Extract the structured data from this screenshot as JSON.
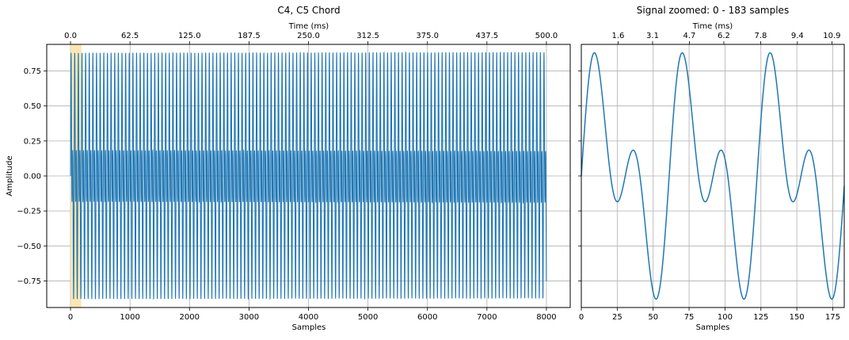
{
  "chart_data": [
    {
      "type": "line",
      "title": "C4, C5 Chord",
      "xlabel": "Samples",
      "ylabel": "Amplitude",
      "top_xlabel": "Time (ms)",
      "xlim": [
        -400,
        8400
      ],
      "ylim": [
        -0.94,
        0.94
      ],
      "xticks": [
        0,
        1000,
        2000,
        3000,
        4000,
        5000,
        6000,
        7000,
        8000
      ],
      "xtick_labels": [
        "0",
        "1000",
        "2000",
        "3000",
        "4000",
        "5000",
        "6000",
        "7000",
        "8000"
      ],
      "yticks": [
        -0.75,
        -0.5,
        -0.25,
        0.0,
        0.25,
        0.5,
        0.75
      ],
      "ytick_labels": [
        "−0.75",
        "−0.50",
        "−0.25",
        "0.00",
        "0.25",
        "0.50",
        "0.75"
      ],
      "top_xticks_samples": [
        0,
        1000,
        2000,
        3000,
        4000,
        5000,
        6000,
        7000,
        8000
      ],
      "top_xtick_labels": [
        "0.0",
        "62.5",
        "125.0",
        "187.5",
        "250.0",
        "312.5",
        "375.0",
        "437.5",
        "500.0"
      ],
      "grid": true,
      "highlight_span": {
        "x0": 0,
        "x1": 183,
        "color": "#fde3ab"
      },
      "signal": {
        "description_samples": 8000,
        "sample_rate_hz": 16000,
        "components": [
          {
            "freq_hz": 261.63,
            "amplitude": 0.5
          },
          {
            "freq_hz": 523.25,
            "amplitude": 0.5
          }
        ]
      },
      "series": [
        {
          "color": "#1f77b4"
        }
      ]
    },
    {
      "type": "line",
      "title": "Signal zoomed: 0 - 183 samples",
      "xlabel": "Samples",
      "top_xlabel": "Time (ms)",
      "xlim": [
        0,
        183
      ],
      "ylim": [
        -0.94,
        0.94
      ],
      "xticks": [
        0,
        25,
        50,
        75,
        100,
        125,
        150,
        175
      ],
      "xtick_labels": [
        "0",
        "25",
        "50",
        "75",
        "100",
        "125",
        "150",
        "175"
      ],
      "top_xticks_samples": [
        25.6,
        49.6,
        75.2,
        99.2,
        124.8,
        150.4,
        174.4
      ],
      "top_xtick_labels": [
        "1.6",
        "3.1",
        "4.7",
        "6.2",
        "7.8",
        "9.4",
        "10.9"
      ],
      "yticks": [
        -0.75,
        -0.5,
        -0.25,
        0.0,
        0.25,
        0.5,
        0.75
      ],
      "grid": true,
      "series": [
        {
          "color": "#1f77b4"
        }
      ]
    }
  ]
}
